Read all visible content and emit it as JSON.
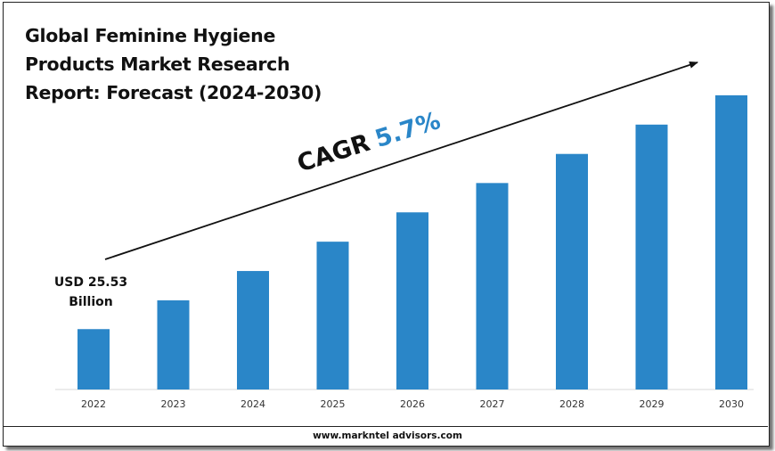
{
  "title_lines": [
    "Global Feminine Hygiene",
    "Products Market Research",
    "Report: Forecast (2024-2030)"
  ],
  "cagr": {
    "label": "CAGR",
    "value": "5.7%"
  },
  "start_value_lines": [
    "USD 25.53",
    "Billion"
  ],
  "footer": {
    "url": "www.markntel advisors.com"
  },
  "colors": {
    "bar": "#2a86c8",
    "cagr_value": "#2a86c8",
    "text": "#111111"
  },
  "chart_data": {
    "type": "bar",
    "categories": [
      "2022",
      "2023",
      "2024",
      "2025",
      "2026",
      "2027",
      "2028",
      "2029",
      "2030"
    ],
    "values": [
      25.53,
      37.7,
      50.1,
      62.5,
      74.9,
      87.3,
      99.6,
      112.0,
      124.4
    ],
    "title": "Global Feminine Hygiene Products Market Research Report: Forecast (2024-2030)",
    "xlabel": "",
    "ylabel": "",
    "ylim": [
      0,
      127
    ],
    "grid": false,
    "annotations": [
      "CAGR 5.7%",
      "USD 25.53 Billion"
    ]
  }
}
